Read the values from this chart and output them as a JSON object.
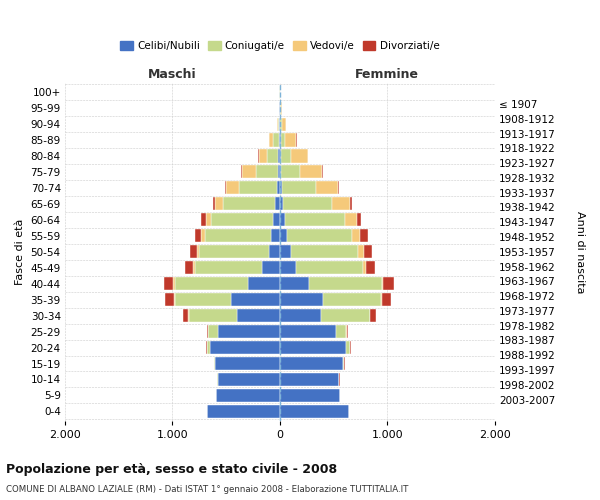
{
  "age_groups": [
    "0-4",
    "5-9",
    "10-14",
    "15-19",
    "20-24",
    "25-29",
    "30-34",
    "35-39",
    "40-44",
    "45-49",
    "50-54",
    "55-59",
    "60-64",
    "65-69",
    "70-74",
    "75-79",
    "80-84",
    "85-89",
    "90-94",
    "95-99",
    "100+"
  ],
  "birth_years": [
    "2003-2007",
    "1998-2002",
    "1993-1997",
    "1988-1992",
    "1983-1987",
    "1978-1982",
    "1973-1977",
    "1968-1972",
    "1963-1967",
    "1958-1962",
    "1953-1957",
    "1948-1952",
    "1943-1947",
    "1938-1942",
    "1933-1937",
    "1928-1932",
    "1923-1927",
    "1918-1922",
    "1913-1917",
    "1908-1912",
    "≤ 1907"
  ],
  "male_celibe": [
    680,
    590,
    580,
    600,
    650,
    580,
    400,
    450,
    300,
    170,
    100,
    80,
    60,
    45,
    30,
    20,
    15,
    10,
    5,
    3,
    2
  ],
  "male_coniugato": [
    1,
    2,
    5,
    10,
    30,
    90,
    450,
    530,
    680,
    620,
    650,
    620,
    580,
    480,
    350,
    200,
    100,
    50,
    15,
    5,
    1
  ],
  "male_vedovo": [
    0,
    0,
    0,
    0,
    1,
    2,
    3,
    5,
    10,
    15,
    20,
    30,
    50,
    80,
    120,
    130,
    80,
    40,
    10,
    2,
    0
  ],
  "male_divorziato": [
    0,
    0,
    0,
    2,
    5,
    10,
    50,
    80,
    90,
    80,
    70,
    60,
    40,
    15,
    10,
    8,
    5,
    2,
    0,
    0,
    0
  ],
  "female_celibe": [
    640,
    560,
    550,
    590,
    620,
    520,
    380,
    400,
    270,
    150,
    100,
    70,
    45,
    30,
    20,
    12,
    10,
    8,
    5,
    3,
    1
  ],
  "female_coniugato": [
    1,
    2,
    5,
    12,
    35,
    100,
    460,
    540,
    680,
    620,
    630,
    600,
    560,
    460,
    320,
    180,
    90,
    45,
    12,
    4,
    1
  ],
  "female_vedovo": [
    0,
    0,
    0,
    0,
    1,
    2,
    4,
    8,
    15,
    30,
    50,
    80,
    110,
    160,
    200,
    200,
    160,
    100,
    40,
    10,
    2
  ],
  "female_divorziato": [
    0,
    0,
    1,
    3,
    8,
    15,
    55,
    85,
    100,
    90,
    80,
    70,
    45,
    18,
    12,
    8,
    5,
    3,
    1,
    0,
    0
  ],
  "color_celibe": "#4472C4",
  "color_coniugato": "#C5D98C",
  "color_vedovo": "#F5C97A",
  "color_divorziato": "#C0392B",
  "xlim": 2000,
  "title_main": "Popolazione per età, sesso e stato civile - 2008",
  "title_sub": "COMUNE DI ALBANO LAZIALE (RM) - Dati ISTAT 1° gennaio 2008 - Elaborazione TUTTITALIA.IT",
  "label_maschi": "Maschi",
  "label_femmine": "Femmine",
  "label_fasciaeta": "Fasce di età",
  "label_anninascita": "Anni di nascita",
  "legend_celibe": "Celibi/Nubili",
  "legend_coniugato": "Coniugati/e",
  "legend_vedovo": "Vedovi/e",
  "legend_divorziato": "Divorziati/e"
}
